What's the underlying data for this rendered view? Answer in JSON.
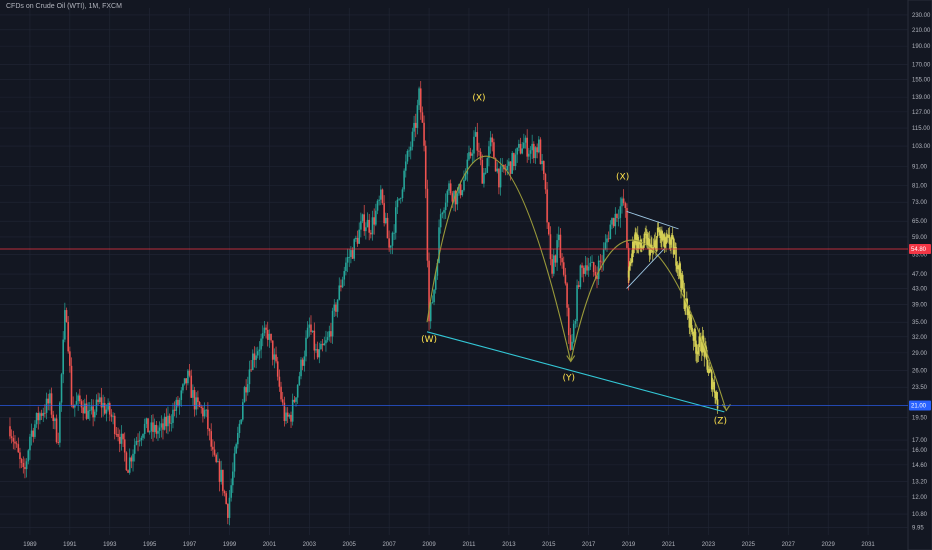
{
  "header": {
    "title": "CFDs on Crude Oil (WTI), 1M, FXCM"
  },
  "chart_data": {
    "type": "candlestick",
    "title": "CFDs on Crude Oil (WTI), 1M, FXCM",
    "yscale": "log",
    "ylim": [
      9.5,
      240
    ],
    "xlim": [
      1987.5,
      2033
    ],
    "y_ticks": [
      "230.00",
      "210.00",
      "190.00",
      "170.00",
      "155.00",
      "139.00",
      "127.00",
      "115.00",
      "103.00",
      "91.00",
      "81.00",
      "73.00",
      "65.00",
      "59.00",
      "53.00",
      "47.00",
      "43.00",
      "39.00",
      "35.00",
      "32.00",
      "29.00",
      "26.00",
      "23.50",
      "21.00",
      "19.50",
      "17.00",
      "16.00",
      "14.60",
      "13.20",
      "12.00",
      "10.80",
      "9.95"
    ],
    "x_ticks": [
      "1989",
      "1991",
      "1993",
      "1995",
      "1997",
      "1999",
      "2001",
      "2003",
      "2005",
      "2007",
      "2009",
      "2011",
      "2013",
      "2015",
      "2017",
      "2019",
      "2021",
      "2023",
      "2025",
      "2027",
      "2029",
      "2031"
    ],
    "current_price": "54.80",
    "projected_price": "21.00",
    "colors": {
      "background": "#131722",
      "up": "#26a69a",
      "down": "#ef5350",
      "projection": "#d4cf55",
      "trendline": "#33c7d6",
      "arc": "#9a9a3a",
      "wave_label": "#ffe34d",
      "price_box": "#f23645",
      "target_box": "#2962ff",
      "grid": "#222736"
    },
    "series": [
      {
        "key": "price_path",
        "points": [
          [
            1988.0,
            18.5
          ],
          [
            1988.4,
            15.5
          ],
          [
            1988.7,
            13.5
          ],
          [
            1989.0,
            17.5
          ],
          [
            1989.5,
            20.0
          ],
          [
            1990.0,
            21.5
          ],
          [
            1990.4,
            17.0
          ],
          [
            1990.8,
            40.0
          ],
          [
            1991.1,
            21.0
          ],
          [
            1991.6,
            21.5
          ],
          [
            1992.0,
            19.5
          ],
          [
            1992.5,
            21.5
          ],
          [
            1993.0,
            20.0
          ],
          [
            1993.5,
            17.5
          ],
          [
            1993.9,
            14.5
          ],
          [
            1994.3,
            17.0
          ],
          [
            1994.7,
            18.5
          ],
          [
            1995.1,
            18.0
          ],
          [
            1995.6,
            18.0
          ],
          [
            1996.0,
            19.5
          ],
          [
            1996.5,
            21.5
          ],
          [
            1996.9,
            25.0
          ],
          [
            1997.3,
            21.0
          ],
          [
            1997.8,
            20.0
          ],
          [
            1998.2,
            15.0
          ],
          [
            1998.6,
            13.5
          ],
          [
            1998.9,
            11.0
          ],
          [
            1999.3,
            15.5
          ],
          [
            1999.7,
            22.5
          ],
          [
            2000.1,
            28.0
          ],
          [
            2000.5,
            30.5
          ],
          [
            2000.9,
            33.0
          ],
          [
            2001.3,
            27.0
          ],
          [
            2001.8,
            19.0
          ],
          [
            2002.1,
            20.0
          ],
          [
            2002.6,
            27.0
          ],
          [
            2003.0,
            34.0
          ],
          [
            2003.4,
            28.0
          ],
          [
            2003.9,
            31.0
          ],
          [
            2004.3,
            38.0
          ],
          [
            2004.8,
            50.0
          ],
          [
            2005.2,
            55.0
          ],
          [
            2005.7,
            65.0
          ],
          [
            2006.1,
            63.0
          ],
          [
            2006.6,
            75.0
          ],
          [
            2007.0,
            55.0
          ],
          [
            2007.5,
            75.0
          ],
          [
            2007.9,
            95.0
          ],
          [
            2008.3,
            115.0
          ],
          [
            2008.5,
            140.0
          ],
          [
            2008.8,
            100.0
          ],
          [
            2009.0,
            35.0
          ],
          [
            2009.3,
            45.0
          ],
          [
            2009.6,
            70.0
          ],
          [
            2010.0,
            80.0
          ],
          [
            2010.4,
            75.0
          ],
          [
            2010.8,
            85.0
          ],
          [
            2011.3,
            110.0
          ],
          [
            2011.7,
            85.0
          ],
          [
            2012.1,
            105.0
          ],
          [
            2012.5,
            85.0
          ],
          [
            2012.9,
            90.0
          ],
          [
            2013.3,
            95.0
          ],
          [
            2013.7,
            105.0
          ],
          [
            2014.1,
            100.0
          ],
          [
            2014.5,
            103.0
          ],
          [
            2014.8,
            80.0
          ],
          [
            2015.1,
            48.0
          ],
          [
            2015.5,
            57.0
          ],
          [
            2015.9,
            40.0
          ],
          [
            2016.1,
            28.0
          ],
          [
            2016.5,
            46.0
          ],
          [
            2016.9,
            51.0
          ],
          [
            2017.3,
            47.0
          ],
          [
            2017.7,
            52.0
          ],
          [
            2018.1,
            64.0
          ],
          [
            2018.5,
            70.0
          ],
          [
            2018.8,
            73.0
          ],
          [
            2019.0,
            46.0
          ]
        ]
      },
      {
        "key": "projection_path",
        "points": [
          [
            2019.0,
            46.0
          ],
          [
            2019.3,
            60.0
          ],
          [
            2019.6,
            55.0
          ],
          [
            2019.9,
            58.0
          ],
          [
            2020.2,
            53.0
          ],
          [
            2020.5,
            61.0
          ],
          [
            2020.8,
            56.0
          ],
          [
            2021.1,
            58.0
          ],
          [
            2021.5,
            50.0
          ],
          [
            2021.8,
            40.0
          ],
          [
            2022.1,
            35.0
          ],
          [
            2022.4,
            30.0
          ],
          [
            2022.7,
            31.0
          ],
          [
            2023.0,
            26.0
          ],
          [
            2023.3,
            23.5
          ],
          [
            2023.5,
            21.0
          ]
        ]
      }
    ],
    "annotations": [
      {
        "label": "(W)",
        "x": 2009.0,
        "y": 31.0
      },
      {
        "label": "(X)",
        "x": 2011.5,
        "y": 136.0
      },
      {
        "label": "(Y)",
        "x": 2016.0,
        "y": 24.5
      },
      {
        "label": "(X)",
        "x": 2018.7,
        "y": 84.0
      },
      {
        "label": "(Z)",
        "x": 2023.6,
        "y": 18.8
      }
    ],
    "trendlines": [
      {
        "from": [
          2008.9,
          33.0
        ],
        "to": [
          2023.8,
          20.2
        ]
      },
      {
        "from": [
          2018.9,
          69.0
        ],
        "to": [
          2021.5,
          62.0
        ]
      },
      {
        "from": [
          2018.9,
          43.0
        ],
        "to": [
          2020.8,
          55.0
        ]
      }
    ]
  }
}
